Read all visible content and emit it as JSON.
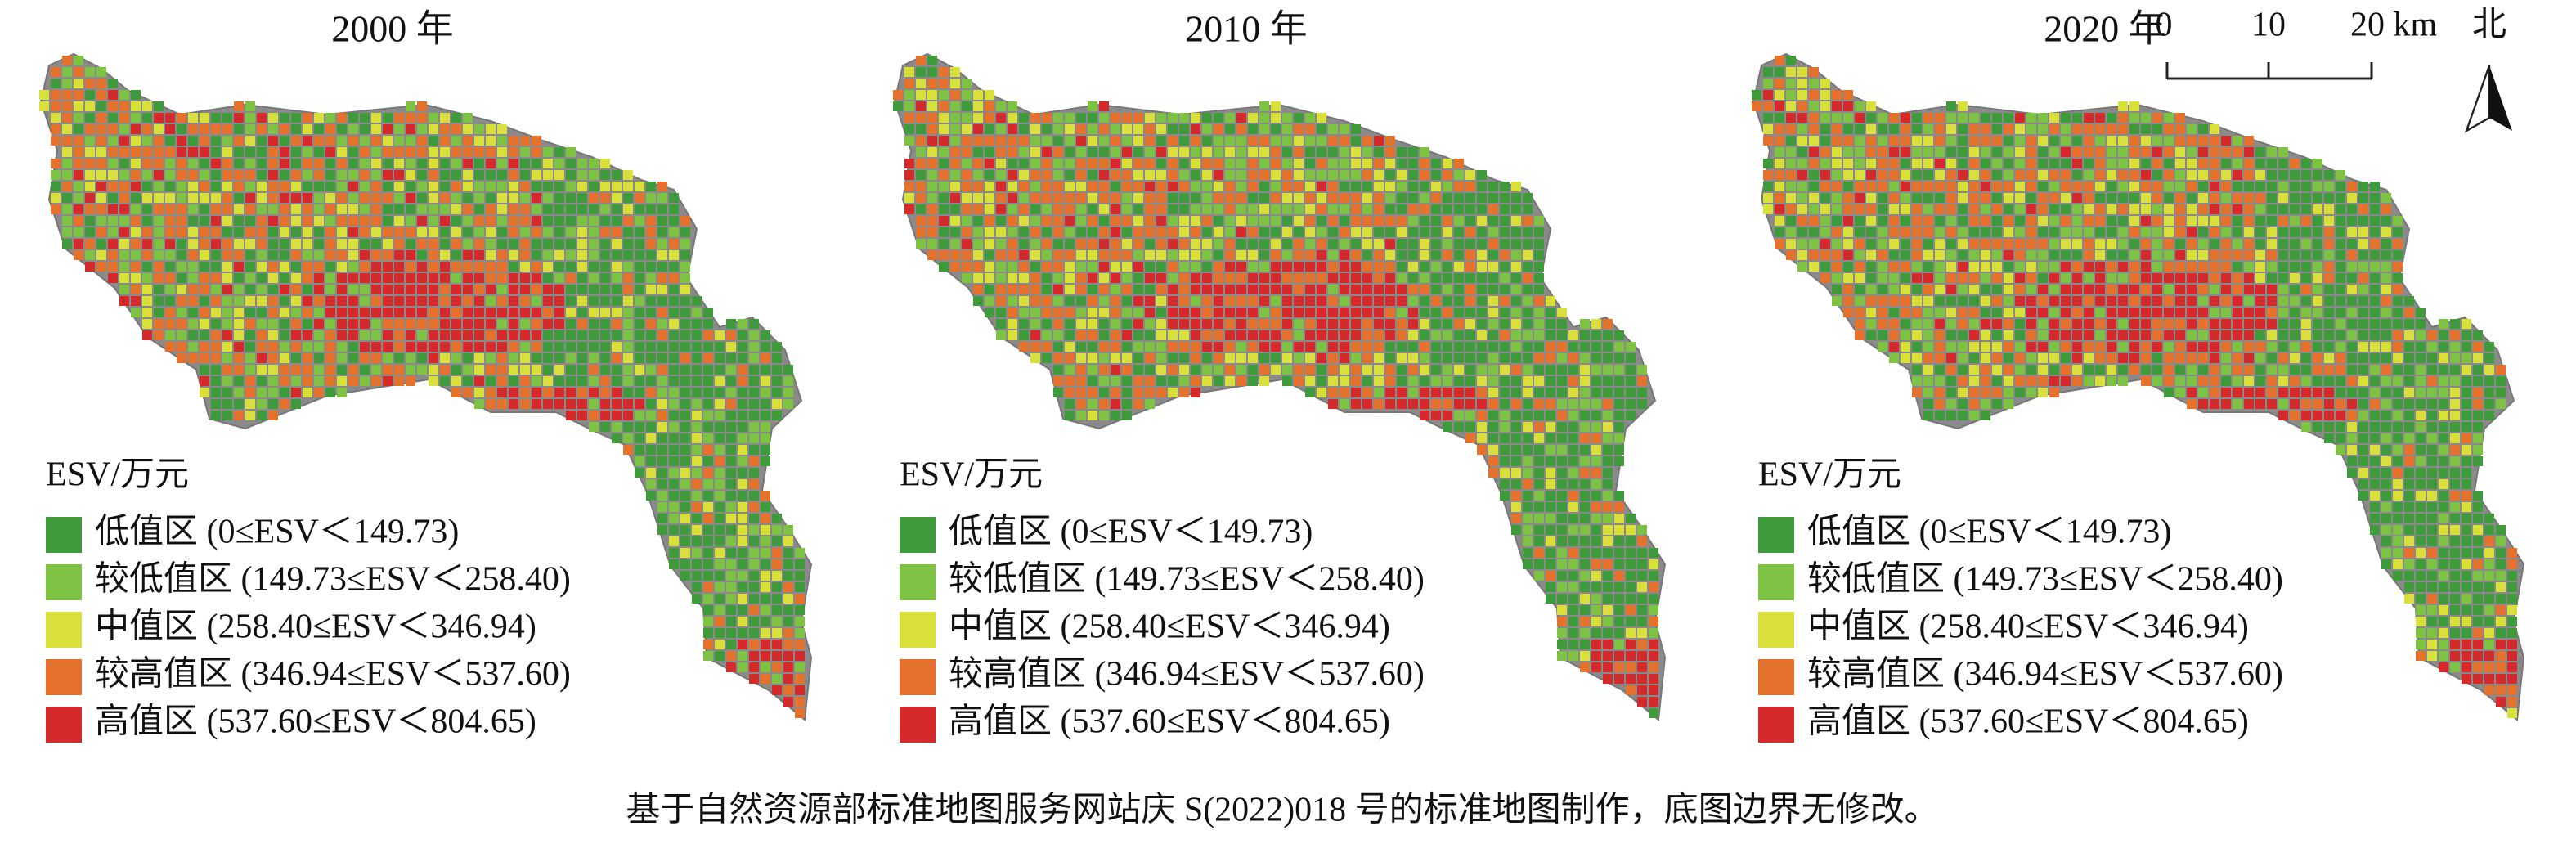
{
  "panels": [
    {
      "title": "2000 年"
    },
    {
      "title": "2010 年"
    },
    {
      "title": "2020 年"
    }
  ],
  "legend": {
    "title": "ESV/万元",
    "items": [
      {
        "label": "低值区 (0≤ESV＜149.73)",
        "color": "#3f9a3c"
      },
      {
        "label": "较低值区 (149.73≤ESV＜258.40)",
        "color": "#7dc243"
      },
      {
        "label": "中值区 (258.40≤ESV＜346.94)",
        "color": "#d9df3b"
      },
      {
        "label": "较高值区 (346.94≤ESV＜537.60)",
        "color": "#e5722c"
      },
      {
        "label": "高值区 (537.60≤ESV＜804.65)",
        "color": "#d52a2c"
      }
    ]
  },
  "scale_bar": {
    "ticks": [
      "0",
      "10",
      "20 km"
    ]
  },
  "north": "北",
  "footnote": "基于自然资源部标准地图服务网站庆 S(2022)018 号的标准地图制作，底图边界无修改。"
}
